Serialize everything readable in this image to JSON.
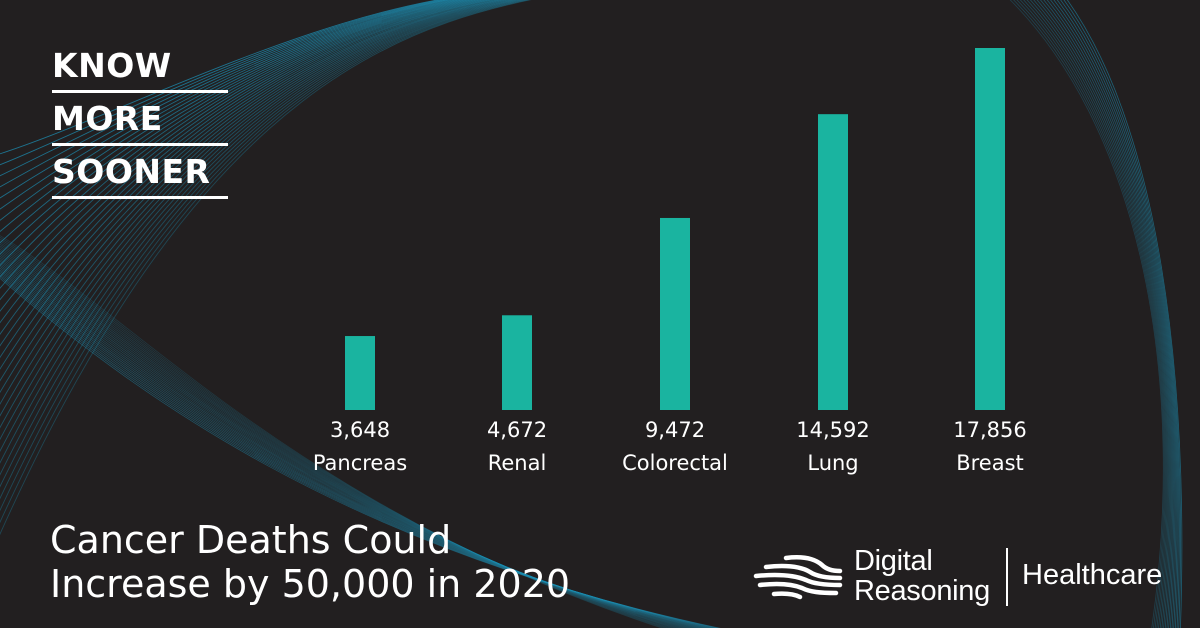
{
  "tagline": [
    "KNOW",
    "MORE",
    "SOONER"
  ],
  "headline": {
    "line1": "Cancer Deaths Could",
    "line2": "Increase by 50,000 in 2020"
  },
  "brand": {
    "name_line1": "Digital",
    "name_line2": "Reasoning",
    "division": "Healthcare"
  },
  "colors": {
    "background": "#221f20",
    "bar": "#1ab4a0",
    "text": "#ffffff",
    "wave": "#1d8fb3"
  },
  "chart_data": {
    "type": "bar",
    "categories": [
      "Pancreas",
      "Renal",
      "Colorectal",
      "Lung",
      "Breast"
    ],
    "values": [
      3648,
      4672,
      9472,
      14592,
      17856
    ],
    "value_labels": [
      "3,648",
      "4,672",
      "9,472",
      "14,592",
      "17,856"
    ],
    "title": "",
    "xlabel": "",
    "ylabel": "",
    "ylim": [
      0,
      17856
    ],
    "grid": false,
    "legend": "none"
  }
}
